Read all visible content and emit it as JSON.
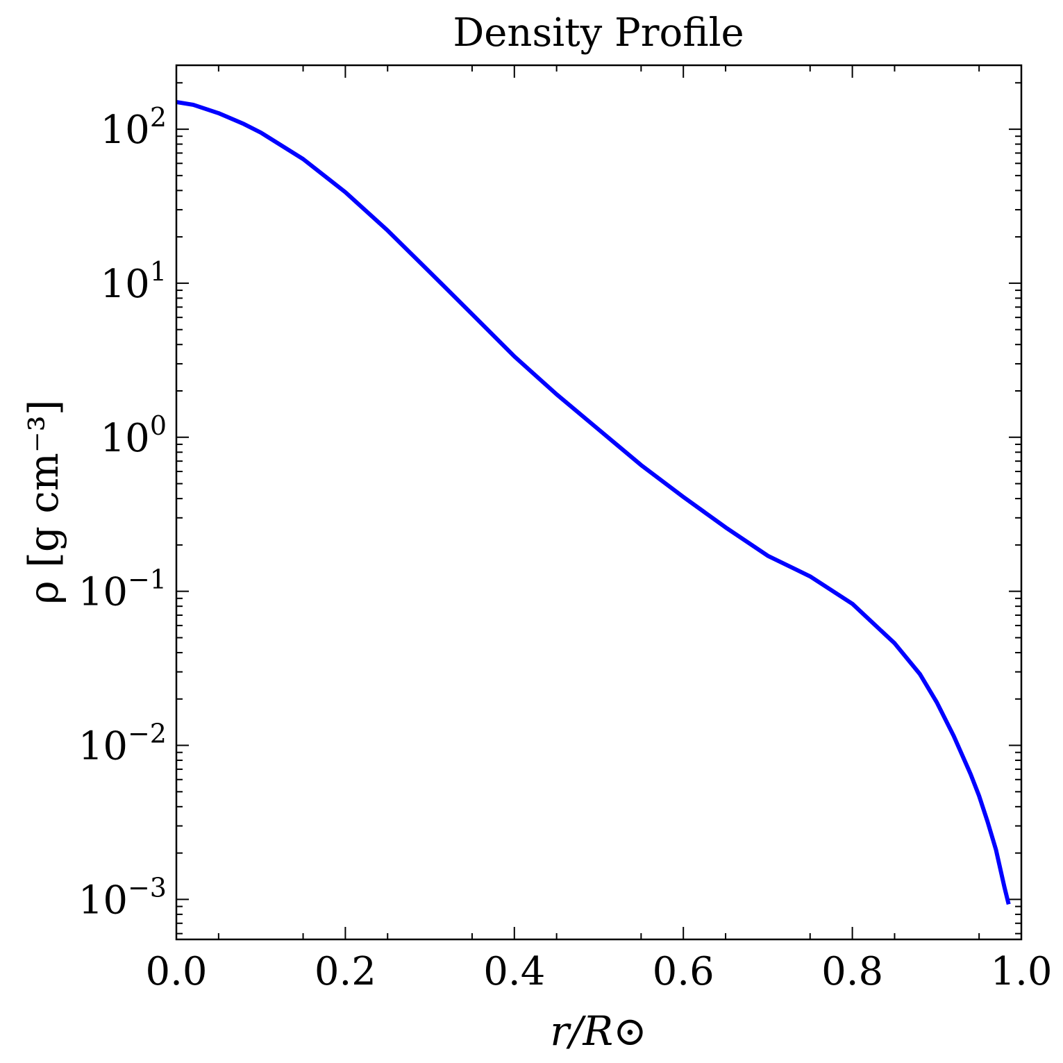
{
  "chart_data": {
    "type": "line",
    "title": "Density Profile",
    "xlabel": "r/R⊙",
    "ylabel": "ρ [g cm⁻³]",
    "yscale": "log",
    "xlim": [
      0.0,
      1.0
    ],
    "ylim": [
      0.00055,
      260
    ],
    "grid": false,
    "line_color": "#0000ff",
    "x_ticks": [
      "0.0",
      "0.2",
      "0.4",
      "0.6",
      "0.8",
      "1.0"
    ],
    "x_tick_values": [
      0.0,
      0.2,
      0.4,
      0.6,
      0.8,
      1.0
    ],
    "y_ticks": [
      {
        "value": 100,
        "base": "10",
        "exp": "2"
      },
      {
        "value": 10,
        "base": "10",
        "exp": "1"
      },
      {
        "value": 1,
        "base": "10",
        "exp": "0"
      },
      {
        "value": 0.1,
        "base": "10",
        "exp": "−1"
      },
      {
        "value": 0.01,
        "base": "10",
        "exp": "−2"
      },
      {
        "value": 0.001,
        "base": "10",
        "exp": "−3"
      }
    ],
    "series": [
      {
        "x": [
          0.0,
          0.02,
          0.05,
          0.08,
          0.1,
          0.15,
          0.2,
          0.25,
          0.3,
          0.35,
          0.4,
          0.45,
          0.5,
          0.55,
          0.6,
          0.65,
          0.7,
          0.75,
          0.8,
          0.85,
          0.88,
          0.9,
          0.92,
          0.94,
          0.95,
          0.96,
          0.97,
          0.98,
          0.985
        ],
        "y": [
          150,
          144,
          127,
          108,
          95,
          64,
          39,
          22,
          11.8,
          6.3,
          3.35,
          1.9,
          1.12,
          0.66,
          0.41,
          0.26,
          0.17,
          0.125,
          0.083,
          0.046,
          0.029,
          0.019,
          0.0115,
          0.0065,
          0.0047,
          0.0032,
          0.0021,
          0.0012,
          0.00093
        ]
      }
    ]
  }
}
